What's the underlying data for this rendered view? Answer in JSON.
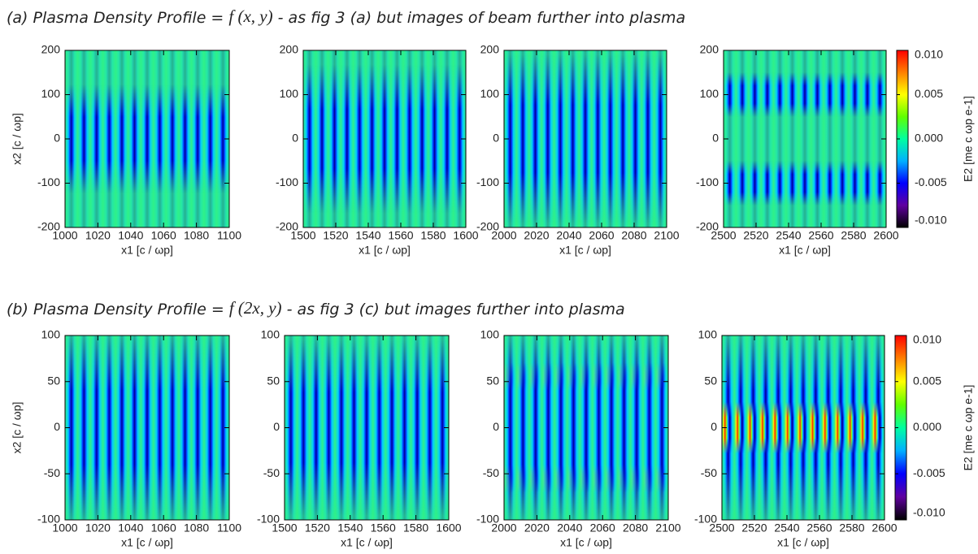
{
  "captions": [
    {
      "label": "(a)",
      "text": "Plasma Density Profile = ",
      "formula": "f (x, y)",
      "note": " - as fig 3 (a) but images of beam further into plasma"
    },
    {
      "label": "(b)",
      "text": "Plasma Density Profile = ",
      "formula": "f (2x, y)",
      "note": " - as fig 3 (c) but images further into plasma"
    }
  ],
  "chart_data": [
    {
      "type": "heatmap",
      "xlabel": "x1 [c / ωp]",
      "ylabel": "x2 [c / ωp]",
      "xlim": [
        1000,
        1100
      ],
      "xticks": [
        1000,
        1020,
        1040,
        1060,
        1080,
        1100
      ],
      "ylim": [
        -200,
        200
      ],
      "yticks": [
        -200,
        -100,
        0,
        100,
        200
      ]
    },
    {
      "type": "heatmap",
      "xlabel": "x1 [c / ωp]",
      "xlim": [
        1500,
        1600
      ],
      "xticks": [
        1500,
        1520,
        1540,
        1560,
        1580,
        1600
      ],
      "ylim": [
        -200,
        200
      ],
      "yticks": [
        -200,
        -100,
        0,
        100,
        200
      ]
    },
    {
      "type": "heatmap",
      "xlabel": "x1 [c / ωp]",
      "xlim": [
        2000,
        2100
      ],
      "xticks": [
        2000,
        2020,
        2040,
        2060,
        2080,
        2100
      ],
      "ylim": [
        -200,
        200
      ],
      "yticks": [
        -200,
        -100,
        0,
        100,
        200
      ]
    },
    {
      "type": "heatmap",
      "xlabel": "x1 [c / ωp]",
      "xlim": [
        2500,
        2600
      ],
      "xticks": [
        2500,
        2520,
        2540,
        2560,
        2580,
        2600
      ],
      "ylim": [
        -200,
        200
      ],
      "yticks": [
        -200,
        -100,
        0,
        100,
        200
      ],
      "colorbar": {
        "label": "E2 [me c ωp e-1]",
        "zlim": [
          -0.01,
          0.01
        ],
        "zticks": [
          {
            "value": 0.01,
            "label": "0.010"
          },
          {
            "value": 0.005,
            "label": "0.005"
          },
          {
            "value": 0,
            "label": "0.000"
          },
          {
            "value": -0.005,
            "label": "-0.005"
          },
          {
            "value": -0.01,
            "label": "-0.010"
          }
        ],
        "colormap": [
          "#000000",
          "#6000a0",
          "#0000ff",
          "#00b0ff",
          "#00ffa0",
          "#60ff00",
          "#ffff00",
          "#ff8000",
          "#ff0000"
        ]
      }
    },
    {
      "type": "heatmap",
      "xlabel": "x1 [c / ωp]",
      "ylabel": "x2 [c / ωp]",
      "xlim": [
        1000,
        1100
      ],
      "xticks": [
        1000,
        1020,
        1040,
        1060,
        1080,
        1100
      ],
      "ylim": [
        -100,
        100
      ],
      "yticks": [
        -100,
        -50,
        0,
        50,
        100
      ]
    },
    {
      "type": "heatmap",
      "xlabel": "x1 [c / ωp]",
      "xlim": [
        1500,
        1600
      ],
      "xticks": [
        1500,
        1520,
        1540,
        1560,
        1580,
        1600
      ],
      "ylim": [
        -100,
        100
      ],
      "yticks": [
        -100,
        -50,
        0,
        50,
        100
      ]
    },
    {
      "type": "heatmap",
      "xlabel": "x1 [c / ωp]",
      "xlim": [
        2000,
        2100
      ],
      "xticks": [
        2000,
        2020,
        2040,
        2060,
        2080,
        2100
      ],
      "ylim": [
        -100,
        100
      ],
      "yticks": [
        -100,
        -50,
        0,
        50,
        100
      ]
    },
    {
      "type": "heatmap",
      "xlabel": "x1 [c / ωp]",
      "xlim": [
        2500,
        2600
      ],
      "xticks": [
        2500,
        2520,
        2540,
        2560,
        2580,
        2600
      ],
      "ylim": [
        -100,
        100
      ],
      "yticks": [
        -100,
        -50,
        0,
        50,
        100
      ],
      "colorbar": {
        "label": "E2 [me c ωp e-1]",
        "zlim": [
          -0.01,
          0.01
        ],
        "zticks": [
          {
            "value": 0.01,
            "label": "0.010"
          },
          {
            "value": 0.005,
            "label": "0.005"
          },
          {
            "value": 0,
            "label": "0.000"
          },
          {
            "value": -0.005,
            "label": "-0.005"
          },
          {
            "value": -0.01,
            "label": "-0.010"
          }
        ],
        "colormap": [
          "#000000",
          "#6000a0",
          "#0000ff",
          "#00b0ff",
          "#00ffa0",
          "#60ff00",
          "#ffff00",
          "#ff8000",
          "#ff0000"
        ]
      }
    }
  ]
}
